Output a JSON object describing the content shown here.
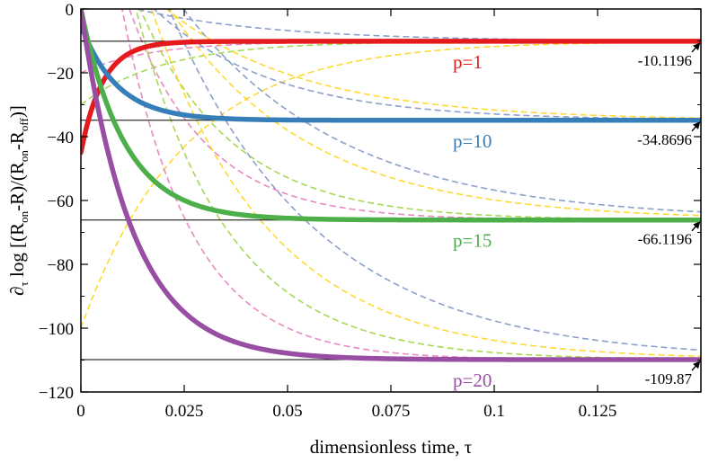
{
  "chart_data": {
    "type": "line",
    "xlabel": "dimensionless time, τ",
    "ylabel_parts": {
      "prefix": "∂",
      "prefix_sub": "τ",
      "mid1": " log [(R",
      "sub_on": "on",
      "mid2": "-R)/(R",
      "sub_on2": "on",
      "mid3": "-R",
      "sub_off": "off",
      "end": ")]"
    },
    "xlim": [
      0,
      0.15
    ],
    "ylim": [
      -120,
      0
    ],
    "xticks": [
      0,
      0.025,
      0.05,
      0.075,
      0.1,
      0.125
    ],
    "xtick_labels": [
      "0",
      "0.025",
      "0.05",
      "0.075",
      "0.1",
      "0.125"
    ],
    "yticks": [
      0,
      -20,
      -40,
      -60,
      -80,
      -100,
      -120
    ],
    "ytick_labels": [
      "0",
      "−20",
      "−40",
      "−60",
      "−80",
      "−100",
      "−120"
    ],
    "grid": false,
    "series": [
      {
        "name": "p=1",
        "color": "#e41a1c",
        "asymptote": -10.1196,
        "asymptote_label": "-10.1196",
        "start": -45,
        "rate": 190
      },
      {
        "name": "p=10",
        "color": "#377eb8",
        "asymptote": -34.8696,
        "asymptote_label": "-34.8696",
        "start": -5,
        "rate": 115
      },
      {
        "name": "p=15",
        "color": "#4daf4a",
        "asymptote": -66.1196,
        "asymptote_label": "-66.1196",
        "start": 0,
        "rate": 95
      },
      {
        "name": "p=20",
        "color": "#984ea3",
        "asymptote": -109.87,
        "asymptote_label": "-109.87",
        "start": 0,
        "rate": 80
      }
    ],
    "dashed_curves": [
      {
        "color": "#ffd92f",
        "from": -100,
        "to": -10.1196,
        "rate": 40
      },
      {
        "color": "#e78ac3",
        "from": -20,
        "to": -10.1196,
        "rate": 60
      },
      {
        "color": "#a6d854",
        "from": -30,
        "to": -10.1196,
        "rate": 50
      },
      {
        "color": "#8da0cb",
        "from": 5,
        "to": -10.1196,
        "rate": 30
      },
      {
        "color": "#8da0cb",
        "from": 30,
        "to": -34.8696,
        "rate": 35
      },
      {
        "color": "#ffd92f",
        "from": 30,
        "to": -34.8696,
        "rate": 30
      },
      {
        "color": "#e78ac3",
        "from": 60,
        "to": -66.1196,
        "rate": 55
      },
      {
        "color": "#a6d854",
        "from": 60,
        "to": -66.1196,
        "rate": 45
      },
      {
        "color": "#ffd92f",
        "from": 60,
        "to": -66.1196,
        "rate": 30
      },
      {
        "color": "#8da0cb",
        "from": 60,
        "to": -66.1196,
        "rate": 26
      },
      {
        "color": "#e78ac3",
        "from": 90,
        "to": -109.87,
        "rate": 60
      },
      {
        "color": "#a6d854",
        "from": 90,
        "to": -109.87,
        "rate": 45
      },
      {
        "color": "#ffd92f",
        "from": 90,
        "to": -109.87,
        "rate": 35
      },
      {
        "color": "#8da0cb",
        "from": 90,
        "to": -109.87,
        "rate": 28
      }
    ]
  }
}
